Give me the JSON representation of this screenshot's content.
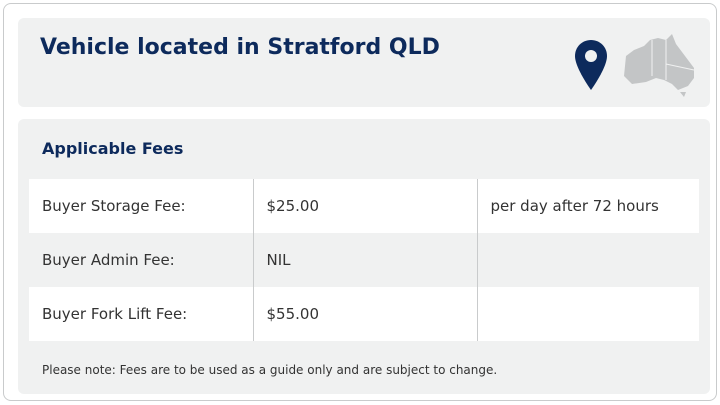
{
  "header": {
    "title": "Vehicle located in Stratford QLD",
    "pin_icon": "map-pin-icon",
    "map_icon": "australia-map-icon",
    "accent": "#0d2a5c"
  },
  "fees": {
    "heading": "Applicable Fees",
    "rows": [
      {
        "label": "Buyer Storage Fee:",
        "amount": "$25.00",
        "note": "per day after 72 hours"
      },
      {
        "label": "Buyer Admin Fee:",
        "amount": "NIL",
        "note": ""
      },
      {
        "label": "Buyer Fork Lift Fee:",
        "amount": "$55.00",
        "note": ""
      }
    ],
    "disclaimer": "Please note: Fees are to be used as a guide only and are subject to change."
  }
}
